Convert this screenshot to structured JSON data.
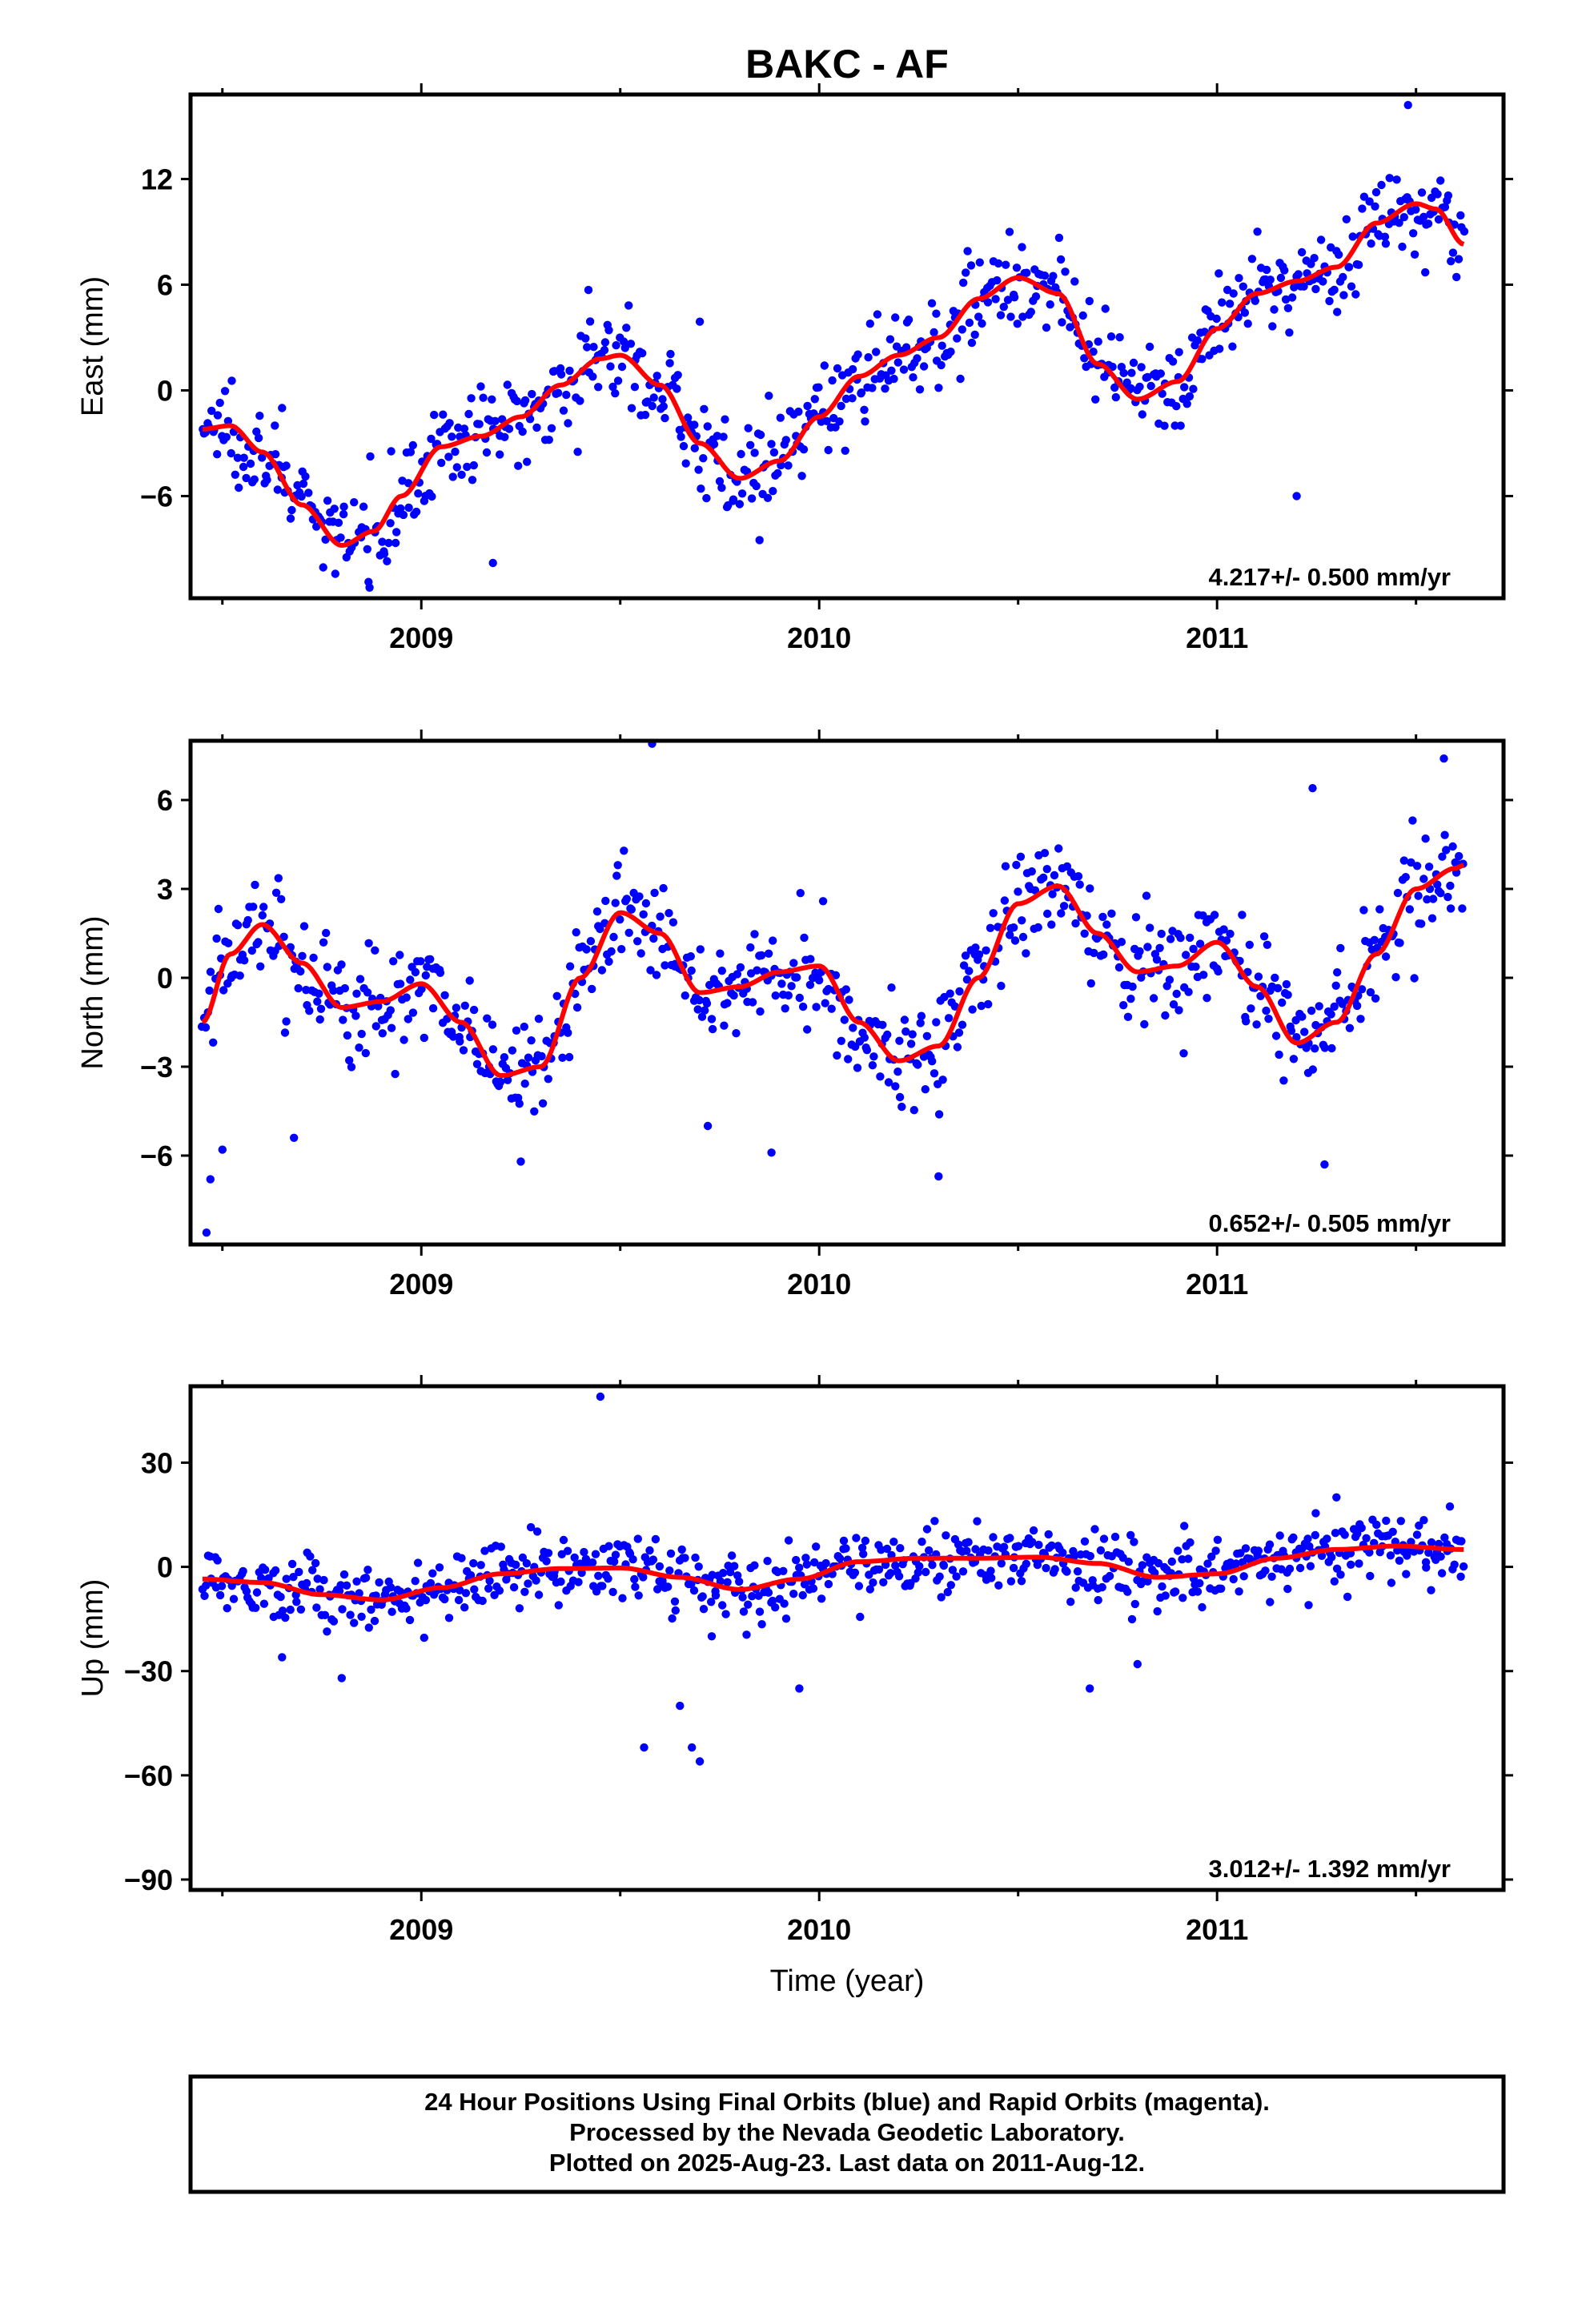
{
  "chart_data": [
    {
      "type": "scatter",
      "title": "BAKC - AF",
      "ylabel": "East (mm)",
      "xlabel": "",
      "xlim": [
        2008.42,
        2011.72
      ],
      "ylim": [
        -11.8,
        16.8
      ],
      "yticks": [
        -6,
        0,
        6,
        12
      ],
      "ytick_labels": [
        "−6",
        "0",
        "6",
        "12"
      ],
      "xticks": [
        2009,
        2010,
        2011
      ],
      "xtick_labels": [
        "2009",
        "2010",
        "2011"
      ],
      "rate_text": "4.217+/- 0.500 mm/yr",
      "point_color": "#0000ff",
      "model_color": "#ff0000",
      "model": {
        "x": [
          2008.45,
          2008.52,
          2008.6,
          2008.7,
          2008.8,
          2008.88,
          2008.95,
          2009.05,
          2009.15,
          2009.25,
          2009.35,
          2009.45,
          2009.5,
          2009.6,
          2009.7,
          2009.8,
          2009.9,
          2010.0,
          2010.1,
          2010.2,
          2010.3,
          2010.4,
          2010.5,
          2010.6,
          2010.7,
          2010.8,
          2010.9,
          2011.0,
          2011.1,
          2011.2,
          2011.3,
          2011.4,
          2011.5,
          2011.55,
          2011.62
        ],
        "y": [
          -2.2,
          -2.0,
          -3.5,
          -6.5,
          -8.8,
          -8.0,
          -6.0,
          -3.2,
          -2.6,
          -1.5,
          0.3,
          1.8,
          2.0,
          0.3,
          -3.0,
          -5.0,
          -4.0,
          -1.5,
          0.8,
          2.0,
          3.0,
          5.2,
          6.4,
          5.5,
          1.5,
          -0.5,
          0.5,
          3.5,
          5.5,
          6.2,
          7.0,
          9.5,
          10.6,
          10.3,
          8.3
        ]
      },
      "points": {
        "center": "model",
        "scatter": 1.3,
        "count": 720,
        "outliers": [
          [
            2008.87,
            -11.2
          ],
          [
            2009.42,
            5.7
          ],
          [
            2009.7,
            3.9
          ],
          [
            2011.2,
            -6.0
          ],
          [
            2011.48,
            16.2
          ],
          [
            2008.65,
            -1.0
          ],
          [
            2009.18,
            -9.8
          ],
          [
            2009.85,
            -8.5
          ]
        ]
      }
    },
    {
      "type": "scatter",
      "title": "",
      "ylabel": "North (mm)",
      "xlabel": "",
      "xlim": [
        2008.42,
        2011.72
      ],
      "ylim": [
        -9.0,
        8.0
      ],
      "yticks": [
        -6,
        -3,
        0,
        3,
        6
      ],
      "ytick_labels": [
        "−6",
        "−3",
        "0",
        "3",
        "6"
      ],
      "xticks": [
        2009,
        2010,
        2011
      ],
      "xtick_labels": [
        "2009",
        "2010",
        "2011"
      ],
      "rate_text": "0.652+/- 0.505 mm/yr",
      "point_color": "#0000ff",
      "model_color": "#ff0000",
      "model": {
        "x": [
          2008.45,
          2008.52,
          2008.6,
          2008.7,
          2008.8,
          2008.9,
          2009.0,
          2009.1,
          2009.2,
          2009.3,
          2009.4,
          2009.5,
          2009.6,
          2009.7,
          2009.8,
          2009.9,
          2010.0,
          2010.1,
          2010.2,
          2010.3,
          2010.4,
          2010.5,
          2010.6,
          2010.7,
          2010.8,
          2010.9,
          2011.0,
          2011.1,
          2011.2,
          2011.3,
          2011.4,
          2011.5,
          2011.6,
          2011.62
        ],
        "y": [
          -1.5,
          0.8,
          1.8,
          0.5,
          -1.0,
          -0.8,
          -0.2,
          -1.5,
          -3.3,
          -3.0,
          0.0,
          2.2,
          1.5,
          -0.5,
          -0.3,
          0.2,
          0.4,
          -1.5,
          -2.8,
          -2.3,
          0.0,
          2.5,
          3.1,
          1.5,
          0.2,
          0.4,
          1.2,
          -0.3,
          -2.2,
          -1.5,
          0.8,
          3.0,
          3.7,
          3.8
        ]
      },
      "points": {
        "center": "model",
        "scatter": 0.95,
        "count": 720,
        "outliers": [
          [
            2008.46,
            -8.6
          ],
          [
            2008.47,
            -6.8
          ],
          [
            2008.5,
            -5.8
          ],
          [
            2009.58,
            7.9
          ],
          [
            2009.72,
            -5.0
          ],
          [
            2009.88,
            -5.9
          ],
          [
            2010.3,
            -6.7
          ],
          [
            2011.24,
            6.4
          ],
          [
            2011.57,
            7.4
          ],
          [
            2011.27,
            -6.3
          ],
          [
            2009.25,
            -6.2
          ],
          [
            2008.68,
            -5.4
          ]
        ]
      }
    },
    {
      "type": "scatter",
      "title": "",
      "ylabel": "Up (mm)",
      "xlabel": "Time (year)",
      "xlim": [
        2008.42,
        2011.72
      ],
      "ylim": [
        -93,
        52
      ],
      "yticks": [
        -90,
        -60,
        -30,
        0,
        30
      ],
      "ytick_labels": [
        "−90",
        "−60",
        "−30",
        "0",
        "30"
      ],
      "xticks": [
        2009,
        2010,
        2011
      ],
      "xtick_labels": [
        "2009",
        "2010",
        "2011"
      ],
      "rate_text": "3.012+/- 1.392 mm/yr",
      "point_color": "#0000ff",
      "model_color": "#ff0000",
      "model": {
        "x": [
          2008.45,
          2008.6,
          2008.75,
          2008.9,
          2009.05,
          2009.2,
          2009.35,
          2009.5,
          2009.65,
          2009.8,
          2009.95,
          2010.1,
          2010.25,
          2010.4,
          2010.55,
          2010.7,
          2010.85,
          2011.0,
          2011.15,
          2011.3,
          2011.45,
          2011.62
        ],
        "y": [
          -3.5,
          -4.5,
          -8.0,
          -9.5,
          -6.0,
          -2.0,
          -0.5,
          -0.3,
          -3.0,
          -6.5,
          -3.5,
          1.5,
          2.5,
          2.5,
          2.8,
          1.0,
          -3.0,
          -2.0,
          2.5,
          5.0,
          6.0,
          5.0
        ]
      },
      "points": {
        "center": "model",
        "scatter": 4.8,
        "count": 720,
        "outliers": [
          [
            2009.45,
            49
          ],
          [
            2009.56,
            -52
          ],
          [
            2009.65,
            -40
          ],
          [
            2009.68,
            -52
          ],
          [
            2009.7,
            -56
          ],
          [
            2009.95,
            -35
          ],
          [
            2010.68,
            -35
          ],
          [
            2010.8,
            -28
          ],
          [
            2009.73,
            -20
          ],
          [
            2008.8,
            -32
          ],
          [
            2008.65,
            -26
          ],
          [
            2011.23,
            -11
          ],
          [
            2011.3,
            20
          ]
        ]
      }
    }
  ],
  "footer": {
    "line1": "24 Hour Positions Using Final Orbits (blue) and Rapid Orbits (magenta).",
    "line2": "Processed by the Nevada Geodetic Laboratory.",
    "line3": "Plotted on 2025-Aug-23. Last data on 2011-Aug-12."
  }
}
